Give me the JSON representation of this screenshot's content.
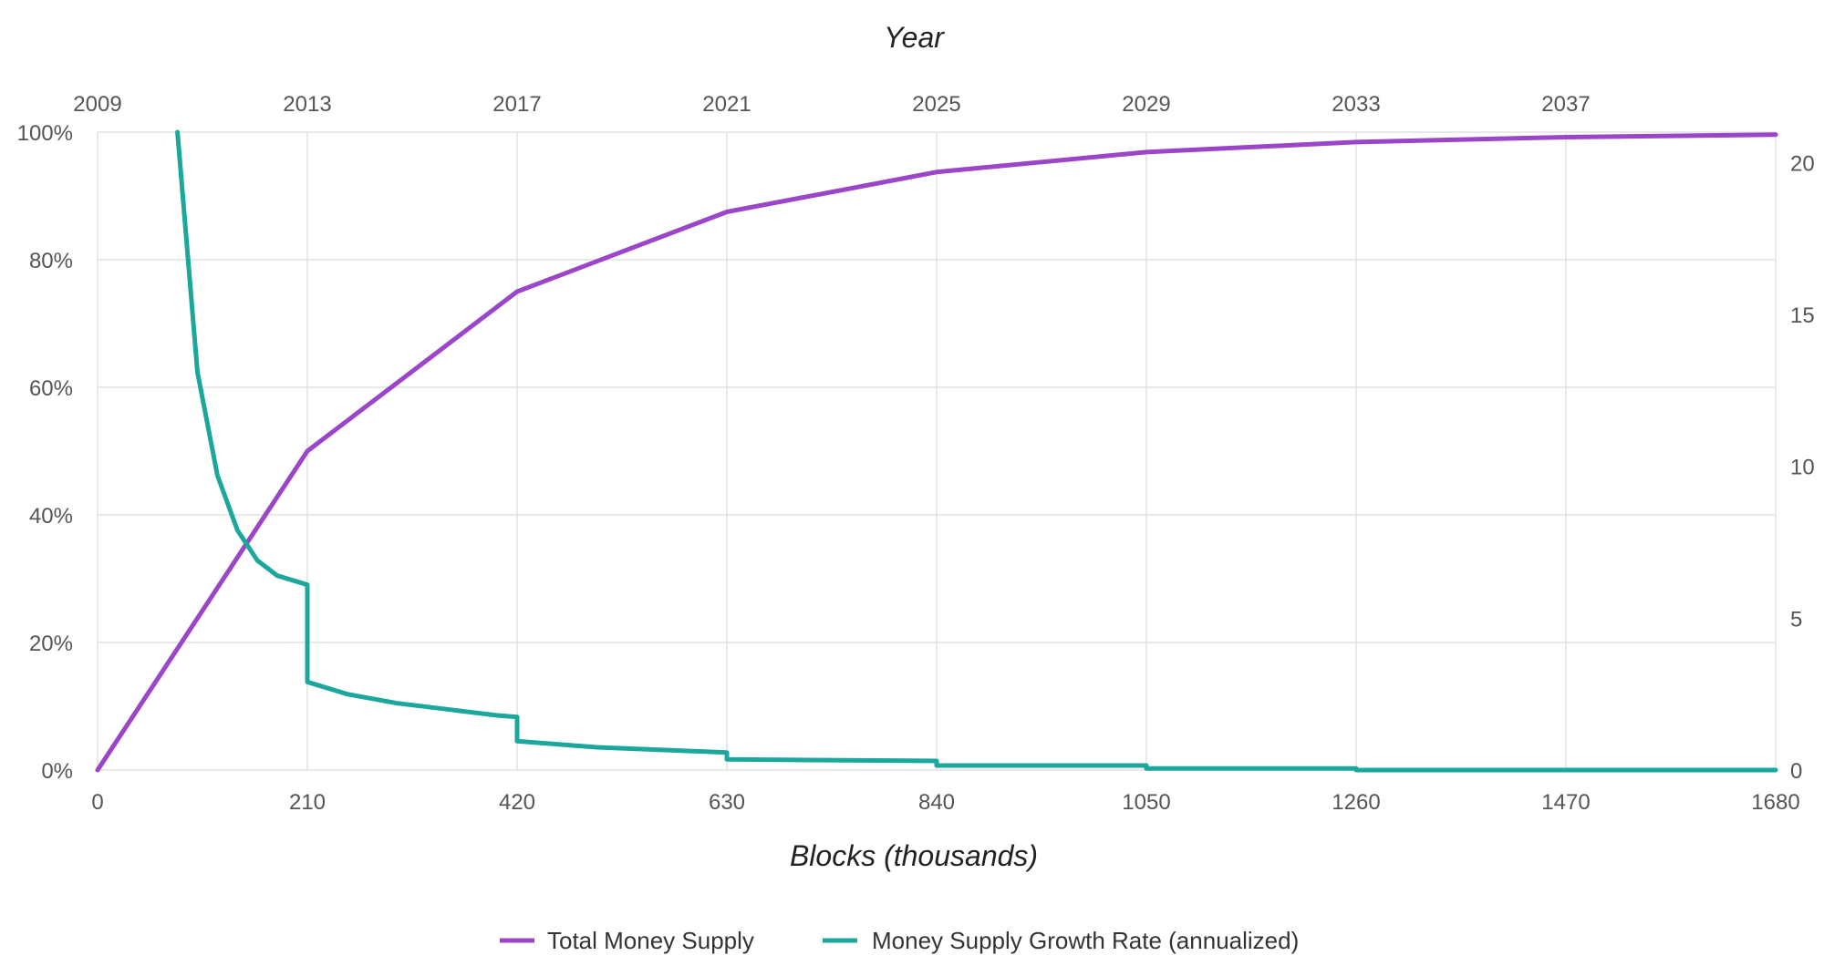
{
  "chart_data": {
    "type": "line",
    "x_axis": {
      "label": "Blocks (thousands)",
      "range": [
        0,
        1680
      ],
      "ticks": [
        0,
        210,
        420,
        630,
        840,
        1050,
        1260,
        1470,
        1680
      ],
      "tick_labels": [
        "0",
        "210",
        "420",
        "630",
        "840",
        "1050",
        "1260",
        "1470",
        "1680"
      ]
    },
    "x_axis_top": {
      "label": "Year",
      "tick_labels": [
        "2009",
        "2013",
        "2017",
        "2021",
        "2025",
        "2029",
        "2033",
        "2037"
      ],
      "tick_blocks": [
        0,
        210,
        420,
        630,
        840,
        1050,
        1260,
        1470
      ]
    },
    "y_axis_left": {
      "range": [
        0,
        100
      ],
      "ticks": [
        0,
        20,
        40,
        60,
        80,
        100
      ],
      "tick_labels": [
        "0%",
        "20%",
        "40%",
        "60%",
        "80%",
        "100%"
      ]
    },
    "y_axis_right": {
      "range": [
        0,
        21
      ],
      "ticks": [
        0,
        5,
        10,
        15,
        20
      ],
      "tick_labels": [
        "0",
        "5",
        "10",
        "15",
        "20"
      ]
    },
    "grid": true,
    "legend_position": "bottom-center",
    "series": [
      {
        "name": "Total Money Supply",
        "axis": "left",
        "color": "#9b45c9",
        "x": [
          0,
          210,
          420,
          630,
          840,
          1050,
          1260,
          1470,
          1680
        ],
        "y": [
          0,
          50,
          75,
          87.5,
          93.75,
          96.875,
          98.44,
          99.22,
          99.61
        ]
      },
      {
        "name": "Money Supply Growth Rate (annualized)",
        "axis": "right",
        "color": "#1ca79d",
        "x": [
          80,
          100,
          120,
          140,
          160,
          180,
          200,
          210,
          210,
          250,
          300,
          350,
          400,
          420,
          420,
          500,
          630,
          630,
          840,
          840,
          1050,
          1050,
          1260,
          1260,
          1680
        ],
        "y": [
          21,
          13.1,
          9.7,
          7.9,
          6.9,
          6.4,
          6.2,
          6.1,
          2.9,
          2.5,
          2.2,
          2.0,
          1.8,
          1.75,
          0.95,
          0.75,
          0.58,
          0.35,
          0.3,
          0.15,
          0.15,
          0.05,
          0.05,
          0.0,
          0.0
        ]
      }
    ]
  }
}
